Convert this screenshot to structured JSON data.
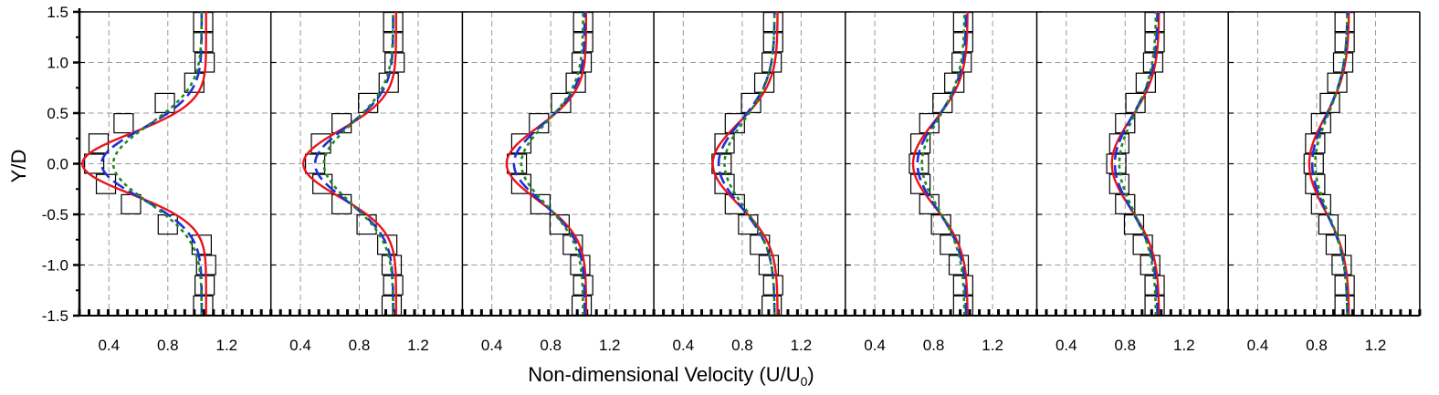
{
  "chart_data": {
    "type": "line",
    "ylabel": "Y/D",
    "xlabel_main": "Non-dimensional Velocity (U/U",
    "xlabel_sub": "0",
    "xlabel_close": ")",
    "ylim": [
      -1.5,
      1.5
    ],
    "yticks": [
      -1.5,
      -1.0,
      -0.5,
      0.0,
      0.5,
      1.0,
      1.5
    ],
    "ytick_labels": [
      "-1.5",
      "-1.0",
      "-0.5",
      "0.0",
      "0.5",
      "1.0",
      "1.5"
    ],
    "xlim": [
      0.2,
      1.5
    ],
    "xticks": [
      0.4,
      0.8,
      1.2
    ],
    "xtick_labels": [
      "0.4",
      "0.8",
      "1.2"
    ],
    "grid": true,
    "line_colors": {
      "solid": "#e8141c",
      "dashed": "#1f2fd6",
      "dotted": "#1e8a1e"
    },
    "panel_count": 7,
    "y": [
      -1.4,
      -1.2,
      -1.0,
      -0.8,
      -0.6,
      -0.4,
      -0.2,
      0.0,
      0.2,
      0.4,
      0.6,
      0.8,
      1.0,
      1.2,
      1.4
    ],
    "panels": [
      {
        "square_markers": [
          1.04,
          1.05,
          1.06,
          1.03,
          0.8,
          0.55,
          0.38,
          0.3,
          0.33,
          0.5,
          0.78,
          0.98,
          1.05,
          1.04,
          1.04
        ],
        "series": [
          {
            "style": "solid",
            "U0": 1.06,
            "Umin": 0.22,
            "sigma": 0.3
          },
          {
            "style": "dashed",
            "U0": 1.03,
            "Umin": 0.35,
            "sigma": 0.34
          },
          {
            "style": "dotted",
            "U0": 1.03,
            "Umin": 0.43,
            "sigma": 0.38
          }
        ]
      },
      {
        "square_markers": [
          1.02,
          1.03,
          1.02,
          0.99,
          0.85,
          0.68,
          0.55,
          0.5,
          0.54,
          0.68,
          0.86,
          1.0,
          1.04,
          1.03,
          1.03
        ],
        "series": [
          {
            "style": "solid",
            "U0": 1.05,
            "Umin": 0.42,
            "sigma": 0.33
          },
          {
            "style": "dashed",
            "U0": 1.03,
            "Umin": 0.5,
            "sigma": 0.36
          },
          {
            "style": "dotted",
            "U0": 1.03,
            "Umin": 0.56,
            "sigma": 0.39
          }
        ]
      },
      {
        "square_markers": [
          1.01,
          1.02,
          1.0,
          0.95,
          0.86,
          0.73,
          0.6,
          0.57,
          0.6,
          0.72,
          0.87,
          0.97,
          1.01,
          1.02,
          1.02
        ],
        "series": [
          {
            "style": "solid",
            "U0": 1.04,
            "Umin": 0.5,
            "sigma": 0.36
          },
          {
            "style": "dashed",
            "U0": 1.03,
            "Umin": 0.55,
            "sigma": 0.38
          },
          {
            "style": "dotted",
            "U0": 1.02,
            "Umin": 0.6,
            "sigma": 0.4
          }
        ]
      },
      {
        "square_markers": [
          1.0,
          1.01,
          0.98,
          0.92,
          0.84,
          0.75,
          0.68,
          0.66,
          0.68,
          0.75,
          0.86,
          0.95,
          1.0,
          1.01,
          1.01
        ],
        "series": [
          {
            "style": "solid",
            "U0": 1.04,
            "Umin": 0.6,
            "sigma": 0.4
          },
          {
            "style": "dashed",
            "U0": 1.02,
            "Umin": 0.64,
            "sigma": 0.42
          },
          {
            "style": "dotted",
            "U0": 1.02,
            "Umin": 0.68,
            "sigma": 0.43
          }
        ]
      },
      {
        "square_markers": [
          1.0,
          1.0,
          0.97,
          0.91,
          0.85,
          0.77,
          0.71,
          0.7,
          0.71,
          0.77,
          0.86,
          0.94,
          0.99,
          1.0,
          1.0
        ],
        "series": [
          {
            "style": "solid",
            "U0": 1.03,
            "Umin": 0.66,
            "sigma": 0.42
          },
          {
            "style": "dashed",
            "U0": 1.02,
            "Umin": 0.69,
            "sigma": 0.44
          },
          {
            "style": "dotted",
            "U0": 1.01,
            "Umin": 0.72,
            "sigma": 0.45
          }
        ]
      },
      {
        "square_markers": [
          1.0,
          1.0,
          0.97,
          0.92,
          0.86,
          0.8,
          0.76,
          0.74,
          0.76,
          0.8,
          0.87,
          0.94,
          0.99,
          1.0,
          1.0
        ],
        "series": [
          {
            "style": "solid",
            "U0": 1.03,
            "Umin": 0.71,
            "sigma": 0.44
          },
          {
            "style": "dashed",
            "U0": 1.02,
            "Umin": 0.73,
            "sigma": 0.46
          },
          {
            "style": "dotted",
            "U0": 1.01,
            "Umin": 0.76,
            "sigma": 0.47
          }
        ]
      },
      {
        "square_markers": [
          0.99,
          0.99,
          0.97,
          0.93,
          0.88,
          0.83,
          0.79,
          0.78,
          0.79,
          0.83,
          0.89,
          0.94,
          0.98,
          0.99,
          0.99
        ],
        "series": [
          {
            "style": "solid",
            "U0": 1.02,
            "Umin": 0.75,
            "sigma": 0.46
          },
          {
            "style": "dashed",
            "U0": 1.01,
            "Umin": 0.77,
            "sigma": 0.47
          },
          {
            "style": "dotted",
            "U0": 1.01,
            "Umin": 0.79,
            "sigma": 0.48
          }
        ]
      }
    ]
  }
}
